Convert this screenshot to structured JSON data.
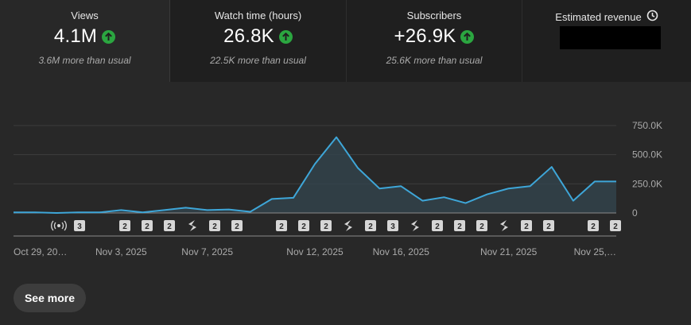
{
  "stats": [
    {
      "label": "Views",
      "value": "4.1M",
      "trend": "up",
      "note": "3.6M more than usual"
    },
    {
      "label": "Watch time (hours)",
      "value": "26.8K",
      "trend": "up",
      "note": "22.5K more than usual"
    },
    {
      "label": "Subscribers",
      "value": "+26.9K",
      "trend": "up",
      "note": "25.6K more than usual"
    }
  ],
  "revenue": {
    "label": "Estimated revenue",
    "icon": "clock-icon",
    "value_redacted": true
  },
  "see_more": "See more",
  "colors": {
    "line": "#3ea6d8",
    "up_badge": "#2ba640",
    "background": "#282828"
  },
  "markers": [
    {
      "type": "live",
      "icon": "live-broadcast-icon",
      "count": null
    },
    {
      "type": "count",
      "count": "3"
    },
    {
      "type": "count",
      "count": "2"
    },
    {
      "type": "count",
      "count": "2"
    },
    {
      "type": "count",
      "count": "2"
    },
    {
      "type": "shorts",
      "icon": "shorts-icon"
    },
    {
      "type": "count",
      "count": "2"
    },
    {
      "type": "count",
      "count": "2"
    },
    {
      "type": "count",
      "count": "2"
    },
    {
      "type": "count",
      "count": "2"
    },
    {
      "type": "count",
      "count": "2"
    },
    {
      "type": "shorts",
      "icon": "shorts-icon"
    },
    {
      "type": "count",
      "count": "2"
    },
    {
      "type": "count",
      "count": "3"
    },
    {
      "type": "shorts",
      "icon": "shorts-icon"
    },
    {
      "type": "count",
      "count": "2"
    },
    {
      "type": "count",
      "count": "2"
    },
    {
      "type": "count",
      "count": "2"
    },
    {
      "type": "shorts",
      "icon": "shorts-icon"
    },
    {
      "type": "count",
      "count": "2"
    },
    {
      "type": "count",
      "count": "2"
    },
    {
      "type": "count",
      "count": "2"
    },
    {
      "type": "count",
      "count": "2"
    }
  ],
  "chart_data": {
    "type": "area",
    "x_tick_labels": [
      "Oct 29, 20…",
      "Nov 3, 2025",
      "Nov 7, 2025",
      "Nov 12, 2025",
      "Nov 16, 2025",
      "Nov 21, 2025",
      "Nov 25,…"
    ],
    "y_tick_labels": [
      "750.0K",
      "500.0K",
      "250.0K",
      "0"
    ],
    "ylim": [
      0,
      750000
    ],
    "grid": true,
    "series": [
      {
        "x": [
          "Oct 29",
          "Oct 30",
          "Oct 31",
          "Nov 1",
          "Nov 2",
          "Nov 3",
          "Nov 4",
          "Nov 5",
          "Nov 6",
          "Nov 7",
          "Nov 8",
          "Nov 9",
          "Nov 10",
          "Nov 11",
          "Nov 12",
          "Nov 13",
          "Nov 14",
          "Nov 15",
          "Nov 16",
          "Nov 17",
          "Nov 18",
          "Nov 19",
          "Nov 20",
          "Nov 21",
          "Nov 22",
          "Nov 23",
          "Nov 24",
          "Nov 25",
          "Nov 26"
        ],
        "values": [
          5000,
          5000,
          0,
          5000,
          5000,
          25000,
          5000,
          25000,
          45000,
          25000,
          30000,
          10000,
          120000,
          130000,
          420000,
          650000,
          385000,
          210000,
          230000,
          105000,
          135000,
          85000,
          160000,
          210000,
          230000,
          395000,
          105000,
          270000,
          270000
        ]
      }
    ]
  }
}
